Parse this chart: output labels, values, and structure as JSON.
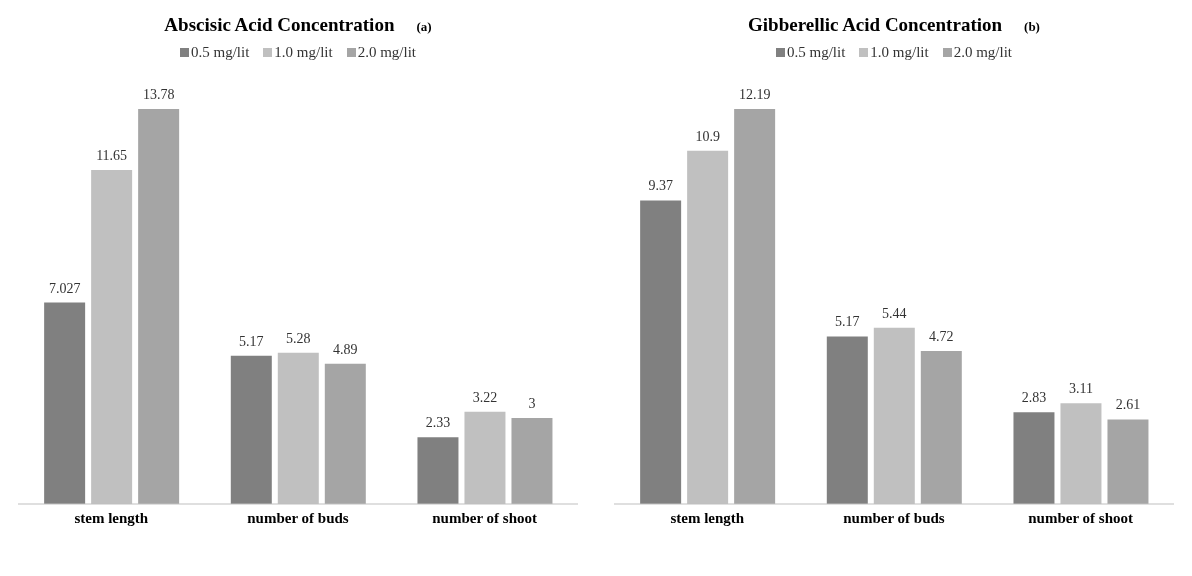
{
  "chart_data": [
    {
      "type": "bar",
      "title": "Abscisic Acid Concentration",
      "annotations": [
        "(a)"
      ],
      "categories": [
        "stem length",
        "number of buds",
        "number of shoot"
      ],
      "series": [
        {
          "name": "0.5 mg/lit",
          "color": "#808080",
          "values": [
            7.027,
            5.17,
            2.33
          ]
        },
        {
          "name": "1.0 mg/lit",
          "color": "#c0c0c0",
          "values": [
            11.65,
            5.28,
            3.22
          ]
        },
        {
          "name": "2.0 mg/lit",
          "color": "#a5a5a5",
          "values": [
            13.78,
            4.89,
            3
          ]
        }
      ],
      "data_labels": true,
      "legend": "top",
      "grid": false
    },
    {
      "type": "bar",
      "title": "Gibberellic Acid Concentration",
      "annotations": [
        "(b)"
      ],
      "categories": [
        "stem length",
        "number of buds",
        "number of shoot"
      ],
      "series": [
        {
          "name": "0.5 mg/lit",
          "color": "#808080",
          "values": [
            9.37,
            5.17,
            2.83
          ]
        },
        {
          "name": "1.0 mg/lit",
          "color": "#c0c0c0",
          "values": [
            10.9,
            5.44,
            3.11
          ]
        },
        {
          "name": "2.0 mg/lit",
          "color": "#a5a5a5",
          "values": [
            12.19,
            4.72,
            2.61
          ]
        }
      ],
      "data_labels": true,
      "legend": "top",
      "grid": false
    }
  ]
}
